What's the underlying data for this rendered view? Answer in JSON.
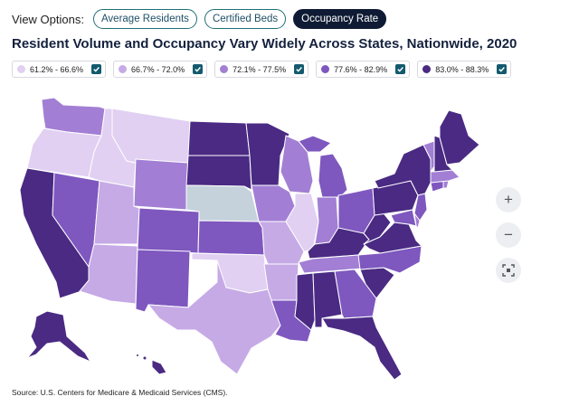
{
  "view_options": {
    "label": "View Options:",
    "buttons": [
      {
        "label": "Average Residents",
        "active": false
      },
      {
        "label": "Certified Beds",
        "active": false
      },
      {
        "label": "Occupancy Rate",
        "active": true
      }
    ]
  },
  "title": "Resident Volume and Occupancy Vary Widely Across States, Nationwide, 2020",
  "legend": [
    {
      "label": "61.2% - 66.6%",
      "color": "#e1d0f2",
      "checked": true
    },
    {
      "label": "66.7% - 72.0%",
      "color": "#c6aae6",
      "checked": true
    },
    {
      "label": "72.1% - 77.5%",
      "color": "#a27fd4",
      "checked": true
    },
    {
      "label": "77.6% - 82.9%",
      "color": "#7e57bf",
      "checked": true
    },
    {
      "label": "83.0% - 88.3%",
      "color": "#4a2a83",
      "checked": true
    }
  ],
  "no_data_color": "#c5d2dc",
  "zoom": {
    "in_icon": "zoom-in-icon",
    "out_icon": "zoom-out-icon",
    "reset_icon": "reset-view-icon"
  },
  "source": "Source: U.S. Centers for Medicare & Medicaid Services (CMS)."
}
